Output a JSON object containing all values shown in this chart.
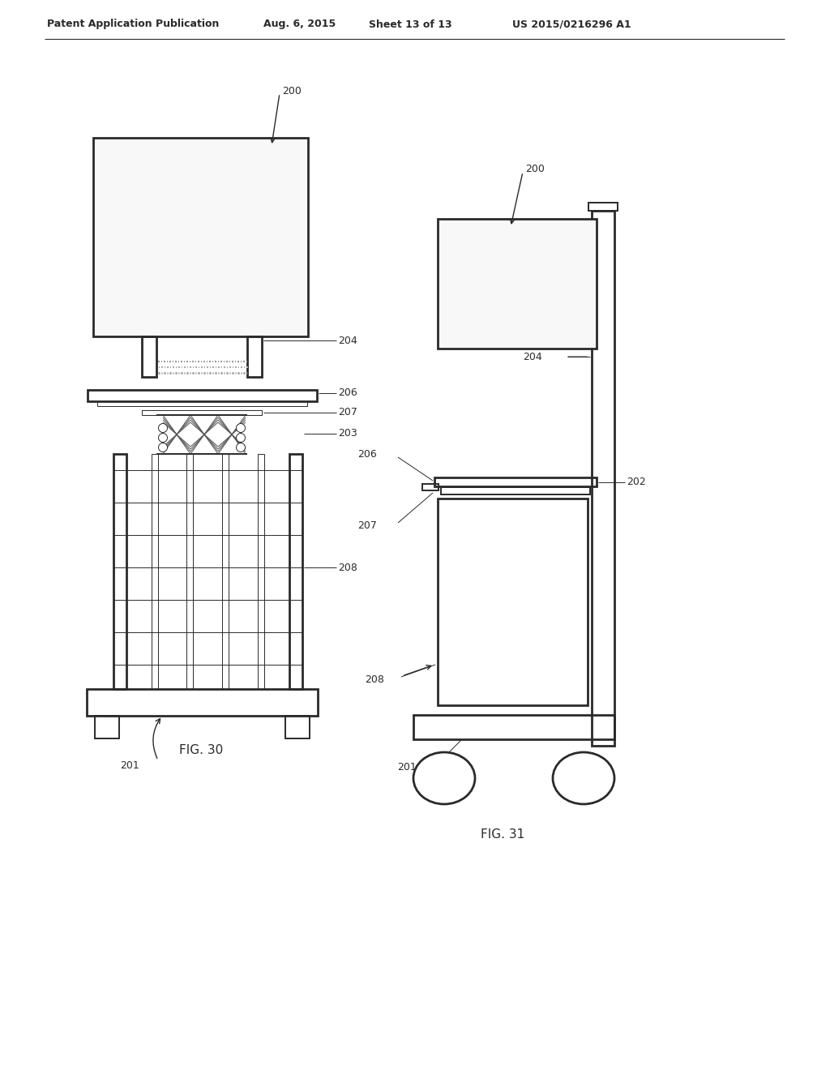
{
  "background_color": "#ffffff",
  "header_text": "Patent Application Publication",
  "header_date": "Aug. 6, 2015",
  "header_sheet": "Sheet 13 of 13",
  "header_patent": "US 2015/0216296 A1",
  "fig30_label": "FIG. 30",
  "fig31_label": "FIG. 31",
  "line_color": "#2a2a2a",
  "lw_main": 1.4,
  "lw_thick": 2.0,
  "lw_thin": 0.7,
  "lw_xthick": 2.8
}
